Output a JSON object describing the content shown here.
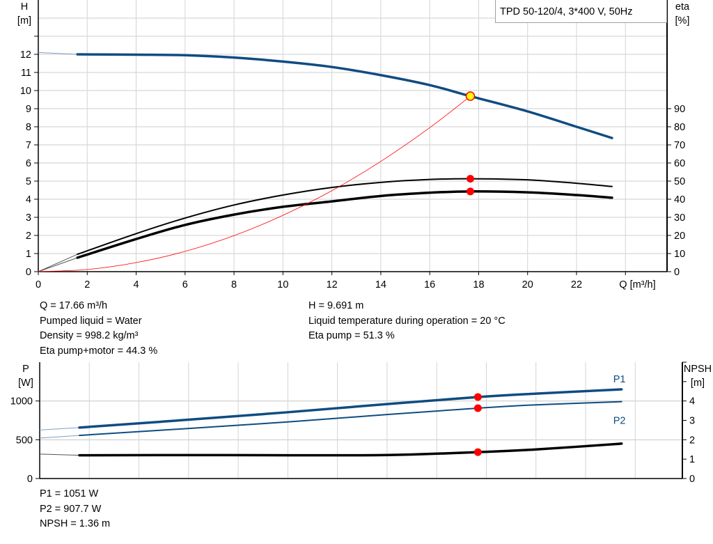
{
  "legend_box": "TPD 50-120/4, 3*400 V, 50Hz",
  "info_left": [
    "Q = 17.66 m³/h",
    "Pumped liquid = Water",
    "Density = 998.2 kg/m³",
    "Eta pump+motor = 44.3 %"
  ],
  "info_right": [
    "H = 9.691 m",
    "Liquid temperature during operation = 20 °C",
    "Eta pump = 51.3 %"
  ],
  "info_bottom": [
    "P1 = 1051 W",
    "P2 = 907.7 W",
    "NPSH = 1.36 m"
  ],
  "colors": {
    "blue": "#0f4c81",
    "black": "#000000",
    "red": "#ff0000",
    "marker_fill_yellow": "#ffff00",
    "grid": "#d3d3d3"
  },
  "chart_data": [
    {
      "type": "line",
      "xlabel": "Q [m³/h]",
      "ylabel_left": [
        "H",
        "[m]"
      ],
      "ylabel_right": [
        "eta",
        "[%]"
      ],
      "xlim": [
        0,
        25.7
      ],
      "ylim_left": [
        0,
        15
      ],
      "ylim_right": [
        0,
        150
      ],
      "xticks": [
        0,
        2,
        4,
        6,
        8,
        10,
        12,
        14,
        16,
        18,
        20,
        22
      ],
      "yticks_left": [
        0,
        1,
        2,
        3,
        4,
        5,
        6,
        7,
        8,
        9,
        10,
        11,
        12
      ],
      "yticks_right": [
        0,
        10,
        20,
        30,
        40,
        50,
        60,
        70,
        80,
        90
      ],
      "grid": true,
      "series": [
        {
          "id": "H",
          "axis": "left",
          "color": "#0f4c81",
          "width": 3.5,
          "start": [
            0,
            12.1
          ],
          "x": [
            1.6,
            4,
            6,
            8,
            10,
            12,
            14,
            16,
            17.66,
            20,
            22,
            23.45
          ],
          "y": [
            12.0,
            11.98,
            11.95,
            11.82,
            11.6,
            11.3,
            10.85,
            10.3,
            9.691,
            8.85,
            8.0,
            7.38
          ]
        },
        {
          "id": "eta_pump",
          "axis": "right",
          "color": "#000000",
          "width": 2,
          "start": [
            0,
            0
          ],
          "x": [
            1.6,
            4,
            6,
            8,
            10,
            12,
            14,
            16,
            17.66,
            20,
            22,
            23.45
          ],
          "y": [
            9.6,
            21,
            29.6,
            36.8,
            42.3,
            46.5,
            49.3,
            50.9,
            51.3,
            50.7,
            48.8,
            47
          ]
        },
        {
          "id": "eta_pump_motor",
          "axis": "right",
          "color": "#000000",
          "width": 3.5,
          "start": [
            0,
            0
          ],
          "x": [
            1.6,
            4,
            6,
            8,
            10,
            12,
            14,
            16,
            17.66,
            20,
            22,
            23.45
          ],
          "y": [
            7.7,
            18,
            25.8,
            31.5,
            35.8,
            38.8,
            41.8,
            43.6,
            44.3,
            43.8,
            42.3,
            40.8
          ]
        },
        {
          "id": "system_curve",
          "axis": "left",
          "color": "#ff0000",
          "width": 0.8,
          "x": [
            0,
            2,
            4,
            6,
            8,
            10,
            12,
            14,
            16,
            17.66
          ],
          "y": [
            0,
            0.12,
            0.5,
            1.12,
            1.99,
            3.11,
            4.47,
            6.09,
            7.95,
            9.691
          ]
        }
      ],
      "operating_points": [
        {
          "axis": "left",
          "x": 17.66,
          "y": 9.691,
          "fill": "#ffff00"
        },
        {
          "axis": "right",
          "x": 17.66,
          "y": 51.3,
          "fill": "#ff0000"
        },
        {
          "axis": "right",
          "x": 17.66,
          "y": 44.3,
          "fill": "#ff0000"
        }
      ]
    },
    {
      "type": "line",
      "ylabel_left": [
        "P",
        "[W]"
      ],
      "ylabel_right": [
        "NPSH",
        "[m]"
      ],
      "xlim": [
        0,
        25.9
      ],
      "ylim_left": [
        0,
        1500
      ],
      "ylim_right": [
        0,
        6
      ],
      "yticks_left": [
        0,
        500,
        1000
      ],
      "yticks_right": [
        0,
        1,
        2,
        3,
        4
      ],
      "grid": true,
      "series": [
        {
          "id": "P1",
          "name": "P1",
          "axis": "left",
          "color": "#0f4c81",
          "width": 3.5,
          "start": [
            0,
            625
          ],
          "x": [
            1.6,
            5,
            10,
            14,
            17.66,
            20,
            23.45
          ],
          "y": [
            657,
            735,
            855,
            960,
            1051,
            1095,
            1150
          ]
        },
        {
          "id": "P2",
          "name": "P2",
          "axis": "left",
          "color": "#0f4c81",
          "width": 2,
          "start": [
            0,
            522
          ],
          "x": [
            1.6,
            5,
            10,
            14,
            17.66,
            20,
            23.45
          ],
          "y": [
            556,
            625,
            730,
            825,
            907.7,
            950,
            991
          ]
        },
        {
          "id": "NPSH",
          "axis": "right",
          "color": "#000000",
          "width": 3.5,
          "start": [
            0,
            1.26
          ],
          "x": [
            1.6,
            5,
            10,
            13,
            15,
            17.66,
            20,
            23.45
          ],
          "y": [
            1.2,
            1.21,
            1.2,
            1.2,
            1.24,
            1.36,
            1.5,
            1.8
          ]
        }
      ],
      "operating_points": [
        {
          "axis": "left",
          "x": 17.66,
          "y": 1051,
          "fill": "#ff0000"
        },
        {
          "axis": "left",
          "x": 17.66,
          "y": 907.7,
          "fill": "#ff0000"
        },
        {
          "axis": "right",
          "x": 17.66,
          "y": 1.36,
          "fill": "#ff0000"
        }
      ]
    }
  ]
}
